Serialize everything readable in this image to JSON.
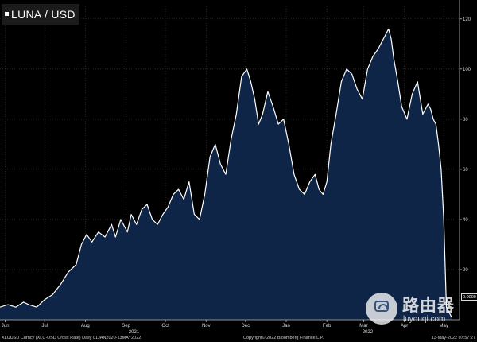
{
  "window": {
    "title": "LUNA / USD"
  },
  "colors": {
    "background": "#000000",
    "area_fill": "#0e2547",
    "line": "#ffffff",
    "grid": "#2f2f2f"
  },
  "footer": {
    "left": "XLUUSD Curncy (XLU-USD Cross Rate)  Daily 01JAN2020-13MAY2022",
    "middle": "Copyright© 2022 Bloomberg Finance L.P.",
    "right": "13-May-2022 07:57:27"
  },
  "last_value_label": "0.0000",
  "watermark": {
    "name": "路由器",
    "url": "luyouqi.com",
    "icon": "router-logo-icon"
  },
  "chart_data": {
    "type": "area",
    "title": "LUNA / USD",
    "xlabel": "",
    "ylabel": "",
    "ylim": [
      0,
      125
    ],
    "y_ticks": [
      20,
      40,
      60,
      80,
      100,
      120
    ],
    "x_range_days": [
      0,
      350
    ],
    "x_ticks": [
      {
        "label": "Jun",
        "day": 4
      },
      {
        "label": "Jul",
        "day": 34
      },
      {
        "label": "Aug",
        "day": 65
      },
      {
        "label": "Sep",
        "day": 96
      },
      {
        "label": "Oct",
        "day": 126
      },
      {
        "label": "Nov",
        "day": 157
      },
      {
        "label": "Dec",
        "day": 187
      },
      {
        "label": "Jan",
        "day": 218
      },
      {
        "label": "Feb",
        "day": 249
      },
      {
        "label": "Mar",
        "day": 277
      },
      {
        "label": "Apr",
        "day": 308
      },
      {
        "label": "May",
        "day": 338
      }
    ],
    "year_labels": [
      {
        "label": "2021",
        "day": 102
      },
      {
        "label": "2022",
        "day": 280
      }
    ],
    "grid": true,
    "days": [
      0,
      6,
      12,
      18,
      22,
      28,
      34,
      40,
      46,
      52,
      58,
      62,
      66,
      70,
      75,
      80,
      85,
      88,
      92,
      97,
      100,
      104,
      108,
      112,
      116,
      120,
      124,
      128,
      132,
      136,
      140,
      144,
      148,
      152,
      156,
      160,
      164,
      168,
      172,
      176,
      180,
      184,
      188,
      191,
      194,
      197,
      200,
      204,
      208,
      212,
      216,
      220,
      224,
      228,
      232,
      236,
      240,
      243,
      246,
      249,
      252,
      256,
      260,
      264,
      268,
      272,
      274,
      276,
      280,
      284,
      288,
      292,
      296,
      298,
      300,
      303,
      306,
      310,
      314,
      318,
      322,
      326,
      328,
      330,
      332,
      334,
      336,
      338,
      340,
      344
    ],
    "values": [
      5,
      6,
      5,
      7,
      6,
      5,
      8,
      10,
      14,
      19,
      22,
      30,
      34,
      31,
      35,
      33,
      38,
      33,
      40,
      35,
      42,
      38,
      44,
      46,
      40,
      38,
      42,
      45,
      50,
      52,
      48,
      55,
      42,
      40,
      50,
      65,
      70,
      62,
      58,
      72,
      82,
      97,
      100,
      95,
      88,
      78,
      82,
      91,
      85,
      78,
      80,
      70,
      58,
      52,
      50,
      55,
      58,
      52,
      50,
      55,
      70,
      82,
      95,
      100,
      98,
      92,
      90,
      88,
      100,
      105,
      108,
      112,
      116,
      112,
      104,
      95,
      85,
      80,
      90,
      95,
      82,
      86,
      84,
      80,
      78,
      70,
      60,
      40,
      5,
      1
    ]
  }
}
